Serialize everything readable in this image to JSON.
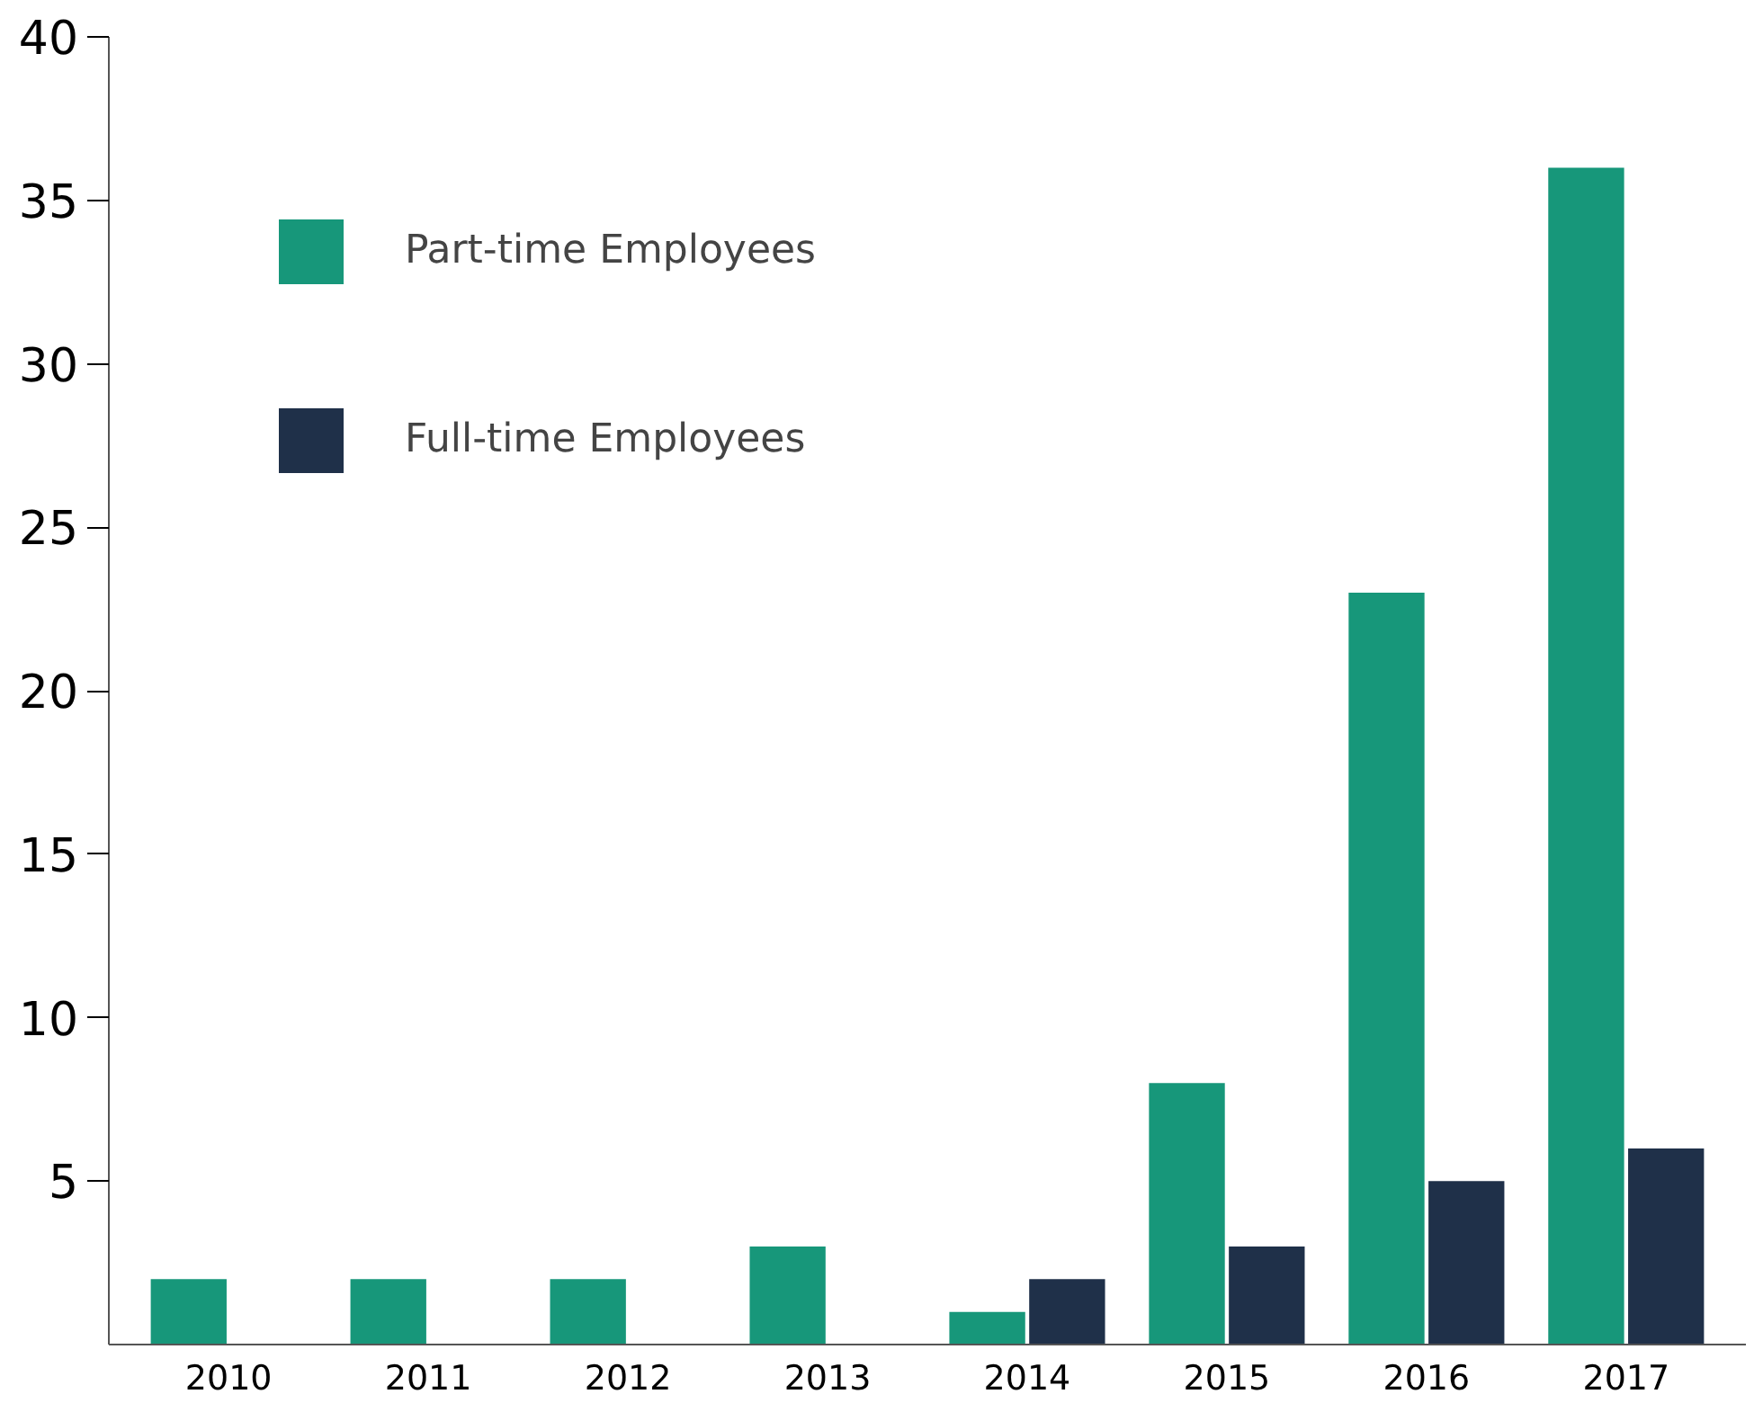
{
  "chart_data": {
    "type": "bar",
    "categories": [
      "2010",
      "2011",
      "2012",
      "2013",
      "2014",
      "2015",
      "2016",
      "2017"
    ],
    "series": [
      {
        "name": "Part-time Employees",
        "color": "#17977a",
        "values": [
          2,
          2,
          2,
          3,
          1,
          8,
          23,
          36
        ]
      },
      {
        "name": "Full-time Employees",
        "color": "#1f3049",
        "values": [
          null,
          null,
          null,
          null,
          2,
          3,
          5,
          6
        ]
      }
    ],
    "ylim": [
      0,
      40
    ],
    "yticks": [
      5,
      10,
      15,
      20,
      25,
      30,
      35,
      40
    ],
    "grid": false,
    "legend": "top left"
  }
}
